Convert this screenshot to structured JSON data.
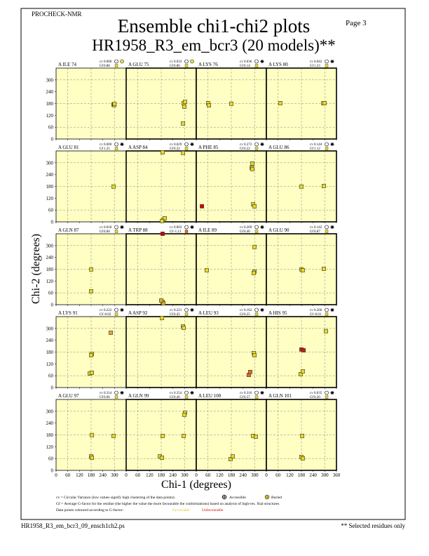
{
  "chart_data": {
    "type": "scatter-grid",
    "header": "PROCHECK-NMR",
    "page": "Page  3",
    "title": "Ensemble chi1-chi2 plots",
    "subtitle": "HR1958_R3_em_bcr3 (20 models)**",
    "xlabel": "Chi-1 (degrees)",
    "ylabel": "Chi-2 (degrees)",
    "xlim": [
      0,
      360
    ],
    "ylim": [
      0,
      360
    ],
    "xticks": [
      0,
      60,
      120,
      180,
      240,
      300,
      360
    ],
    "yticks": [
      0,
      60,
      120,
      180,
      240,
      300
    ],
    "grid_lines": [
      60,
      180,
      300
    ],
    "cv_label": "cv",
    "gf_label": "Gf",
    "panels": [
      {
        "label": "A ILE 74",
        "cv": "0.000",
        "gf": "0.88",
        "gf_color": "#e8d820",
        "access": "buried",
        "x": [
          295,
          298,
          300
        ],
        "y": [
          175,
          172,
          178
        ],
        "colors": [
          "#e8d820",
          "#e8d820",
          "#e8d820"
        ]
      },
      {
        "label": "A GLU 75",
        "cv": "0.033",
        "gf": "0.86",
        "gf_color": "#e8d820",
        "access": "buried",
        "x": [
          295,
          299,
          302,
          292
        ],
        "y": [
          182,
          164,
          189,
          79
        ],
        "colors": [
          "#e8d820",
          "#e8d820",
          "#e8d820",
          "#e8d820"
        ]
      },
      {
        "label": "A LYS 76",
        "cv": "0.036",
        "gf": "0.14",
        "gf_color": "#e8d820",
        "access": "accessible",
        "x": [
          61,
          65,
          180
        ],
        "y": [
          182,
          171,
          179
        ],
        "colors": [
          "#e8d820",
          "#e8d820",
          "#e8d820"
        ]
      },
      {
        "label": "A LYS 80",
        "cv": "0.043",
        "gf": "1.23",
        "gf_color": "#e8d820",
        "access": "accessible",
        "x": [
          72,
          292,
          299
        ],
        "y": [
          182,
          182,
          182
        ],
        "colors": [
          "#e8d820",
          "#e8d820",
          "#e8d820"
        ]
      },
      {
        "label": "A GLU 81",
        "cv": "0.000",
        "gf": "1.25",
        "gf_color": "#e8d820",
        "access": "accessible",
        "x": [
          295
        ],
        "y": [
          179
        ],
        "colors": [
          "#e8d820"
        ]
      },
      {
        "label": "A ASP 84",
        "cv": "0.029",
        "gf": "0.22",
        "gf_color": "#e8d820",
        "access": "accessible",
        "x": [
          187,
          191,
          198,
          184,
          292
        ],
        "y": [
          353,
          11,
          18,
          4,
          350
        ],
        "colors": [
          "#e8d820",
          "#e8d820",
          "#e8d820",
          "#e8d820",
          "#e8d820"
        ]
      },
      {
        "label": "A PHE 85",
        "cv": "0.272",
        "gf": "0.22",
        "gf_color": "#e8d820",
        "access": "accessible",
        "x": [
          29,
          288,
          284,
          288,
          292,
          299
        ],
        "y": [
          79,
          296,
          275,
          268,
          89,
          79
        ],
        "colors": [
          "#d00000",
          "#e8d820",
          "#e8d820",
          "#e8d820",
          "#e8d820",
          "#e8d820"
        ]
      },
      {
        "label": "A GLU 86",
        "cv": "0.144",
        "gf": "1.12",
        "gf_color": "#e8d820",
        "access": "accessible",
        "x": [
          180,
          295
        ],
        "y": [
          179,
          182
        ],
        "colors": [
          "#e8d820",
          "#e8d820"
        ]
      },
      {
        "label": "A GLN 87",
        "cv": "0.018",
        "gf": "0.60",
        "gf_color": "#e8d820",
        "access": "accessible",
        "x": [
          180,
          180
        ],
        "y": [
          179,
          68
        ],
        "colors": [
          "#e8d820",
          "#e8d820"
        ]
      },
      {
        "label": "A TRP 88",
        "cv": "0.003",
        "gf": "-1.13",
        "gf_color": "#e07020",
        "access": "accessible",
        "x": [
          187,
          187,
          191,
          180
        ],
        "y": [
          360,
          14,
          7,
          21
        ],
        "colors": [
          "#d00000",
          "#d8b020",
          "#d8b020",
          "#d8b020"
        ]
      },
      {
        "label": "A ILE 89",
        "cv": "0.269",
        "gf": "0.40",
        "gf_color": "#e8d820",
        "access": "accessible",
        "x": [
          54,
          299,
          299,
          295
        ],
        "y": [
          175,
          293,
          168,
          161
        ],
        "colors": [
          "#e8d820",
          "#e8d820",
          "#e8d820",
          "#e8d820"
        ]
      },
      {
        "label": "A GLU 90",
        "cv": "0.142",
        "gf": "0.87",
        "gf_color": "#e8d820",
        "access": "accessible",
        "x": [
          180,
          187,
          295
        ],
        "y": [
          179,
          175,
          182
        ],
        "colors": [
          "#e8d820",
          "#e8d820",
          "#e8d820"
        ]
      },
      {
        "label": "A LYS 91",
        "cv": "0.222",
        "gf": "-0.02",
        "gf_color": "#e8d820",
        "access": "accessible",
        "x": [
          173,
          184,
          184,
          180,
          281
        ],
        "y": [
          71,
          75,
          171,
          164,
          278
        ],
        "colors": [
          "#e8d820",
          "#e8d820",
          "#e8d820",
          "#e8d820",
          "#e8a040"
        ]
      },
      {
        "label": "A ASP 92",
        "cv": "0.221",
        "gf": "0.45",
        "gf_color": "#e8d820",
        "access": "accessible",
        "x": [
          184,
          292,
          295
        ],
        "y": [
          353,
          311,
          303
        ],
        "colors": [
          "#e8d820",
          "#e8d820",
          "#e8d820"
        ]
      },
      {
        "label": "A LEU 93",
        "cv": "0.162",
        "gf": "0.25",
        "gf_color": "#e8d820",
        "access": "accessible",
        "x": [
          295,
          299,
          270,
          277
        ],
        "y": [
          175,
          164,
          64,
          79
        ],
        "colors": [
          "#e8d820",
          "#e8d820",
          "#e07020",
          "#e07020"
        ]
      },
      {
        "label": "A HIS 95",
        "cv": "0.266",
        "gf": "-0.01",
        "gf_color": "#e8d820",
        "access": "accessible",
        "x": [
          180,
          191,
          176,
          187,
          306
        ],
        "y": [
          193,
          189,
          68,
          82,
          286
        ],
        "colors": [
          "#c82010",
          "#c82010",
          "#e8d820",
          "#e8d820",
          "#e8d820"
        ]
      },
      {
        "label": "A GLU 97",
        "cv": "0.314",
        "gf": "0.66",
        "gf_color": "#e8d820",
        "access": "accessible",
        "x": [
          184,
          180,
          184,
          295
        ],
        "y": [
          179,
          71,
          64,
          175
        ],
        "colors": [
          "#e8d820",
          "#e8d820",
          "#e8d820",
          "#e8d820"
        ]
      },
      {
        "label": "A GLN 99",
        "cv": "0.354",
        "gf": "0.46",
        "gf_color": "#e8d820",
        "access": "accessible",
        "x": [
          173,
          184,
          295,
          302,
          299,
          187
        ],
        "y": [
          71,
          64,
          175,
          293,
          282,
          175
        ],
        "colors": [
          "#e8d820",
          "#e8d820",
          "#e8d820",
          "#e8d820",
          "#e8d820",
          "#e8d820"
        ]
      },
      {
        "label": "A LEU 100",
        "cv": "0.316",
        "gf": "0.57",
        "gf_color": "#e8d820",
        "access": "accessible",
        "x": [
          176,
          187,
          292,
          306
        ],
        "y": [
          57,
          71,
          175,
          171
        ],
        "colors": [
          "#e8d820",
          "#e8d820",
          "#e8d820",
          "#e8d820"
        ]
      },
      {
        "label": "A GLN 101",
        "cv": "0.035",
        "gf": "0.20",
        "gf_color": "#e8d820",
        "access": "accessible",
        "x": [
          180,
          187,
          184
        ],
        "y": [
          68,
          61,
          175
        ],
        "colors": [
          "#e8d820",
          "#e8d820",
          "#e8d820"
        ]
      }
    ],
    "legend": {
      "cv_note": "cv = Circular Variance (low values signify high clustering of the data points).",
      "accessible": "Accessible",
      "buried": "Buried",
      "gf_note": "Gf = Average G-factor for the residue (the higher the value the more favourable the conformations) based on analysis of high-res. Xtal structures",
      "colour_note": "Data points coloured according to G-factor:",
      "favourable": "Favourable",
      "unfavourable": "Unfavourable"
    },
    "footer_left": "HR1958_R3_em_bcr3_09_ensch1ch2.ps",
    "footer_right": "** Selected residues only"
  }
}
